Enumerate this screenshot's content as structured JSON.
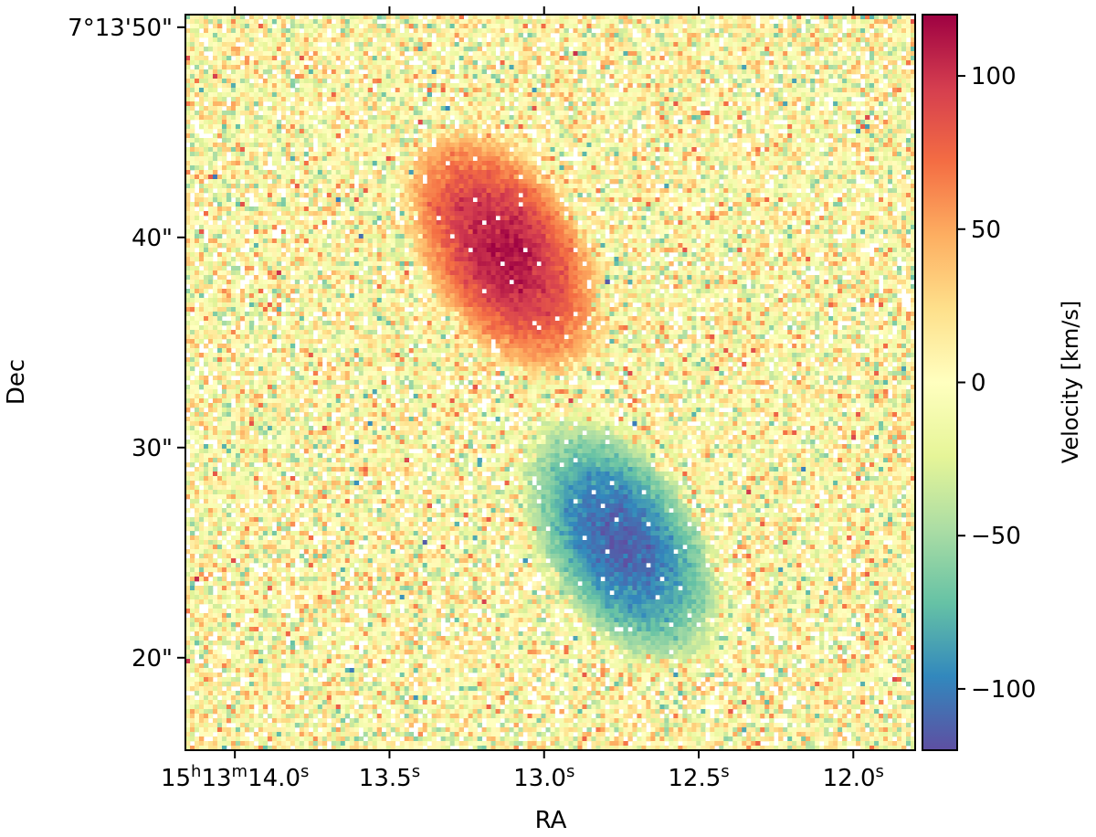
{
  "chart_data": {
    "type": "heatmap",
    "title": "",
    "xlabel": "RA",
    "ylabel": "Dec",
    "colorbar_label": "Velocity [km/s]",
    "colormap": "Spectral_r",
    "value_range": [
      -120,
      120
    ],
    "x_ticks": [
      {
        "value": 14.0,
        "label_main": "15",
        "label_h": "h",
        "label_mid": "13",
        "label_m": "m",
        "label_sec": "14.0",
        "label_s": "s"
      },
      {
        "value": 13.5,
        "label_main": "",
        "label_h": "",
        "label_mid": "",
        "label_m": "",
        "label_sec": "13.5",
        "label_s": "s"
      },
      {
        "value": 13.0,
        "label_main": "",
        "label_h": "",
        "label_mid": "",
        "label_m": "",
        "label_sec": "13.0",
        "label_s": "s"
      },
      {
        "value": 12.5,
        "label_main": "",
        "label_h": "",
        "label_mid": "",
        "label_m": "",
        "label_sec": "12.5",
        "label_s": "s"
      },
      {
        "value": 12.0,
        "label_main": "",
        "label_h": "",
        "label_mid": "",
        "label_m": "",
        "label_sec": "12.0",
        "label_s": "s"
      }
    ],
    "y_ticks": [
      {
        "value": 50,
        "label": "7°13'50\""
      },
      {
        "value": 40,
        "label": "40\""
      },
      {
        "value": 30,
        "label": "30\""
      },
      {
        "value": 20,
        "label": "20\""
      }
    ],
    "colorbar_ticks": [
      {
        "value": 100,
        "label": "100"
      },
      {
        "value": 50,
        "label": "50"
      },
      {
        "value": 0,
        "label": "0"
      },
      {
        "value": -50,
        "label": "−50"
      },
      {
        "value": -100,
        "label": "−100"
      }
    ],
    "x_range_seconds": [
      14.16,
      11.8
    ],
    "y_range_arcsec": [
      15.6,
      50.6
    ],
    "blobs": [
      {
        "name": "redshifted lobe",
        "center_ra_s": 13.13,
        "center_dec_arcsec": 39.3,
        "peak_velocity": 112
      },
      {
        "name": "blueshifted lobe",
        "center_ra_s": 12.75,
        "center_dec_arcsec": 25.5,
        "peak_velocity": -112
      }
    ]
  }
}
